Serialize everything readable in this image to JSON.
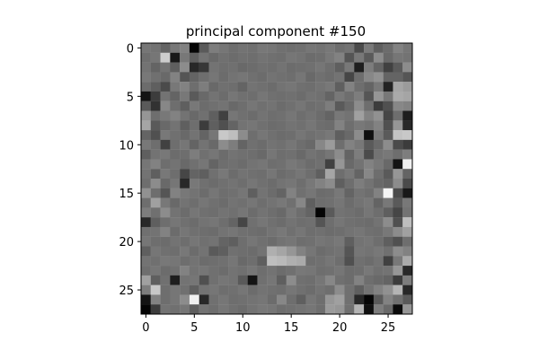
{
  "chart_data": {
    "type": "heatmap",
    "title": "principal component #150",
    "xlabel": "",
    "ylabel": "",
    "colormap": "gray",
    "grid": false,
    "rows": 28,
    "cols": 28,
    "x_ticks": [
      0,
      5,
      10,
      15,
      20,
      25
    ],
    "y_ticks": [
      0,
      5,
      10,
      15,
      20,
      25
    ],
    "xlim": [
      -0.5,
      27.5
    ],
    "ylim": [
      27.5,
      -0.5
    ],
    "vmin": 0,
    "vmax": 255,
    "values": [
      [
        118,
        115,
        100,
        120,
        130,
        5,
        90,
        125,
        118,
        110,
        115,
        112,
        120,
        118,
        112,
        110,
        112,
        118,
        115,
        120,
        110,
        115,
        75,
        122,
        95,
        108,
        130,
        118
      ],
      [
        110,
        118,
        205,
        25,
        120,
        95,
        115,
        105,
        112,
        108,
        112,
        110,
        115,
        112,
        110,
        118,
        115,
        108,
        110,
        120,
        130,
        85,
        120,
        90,
        140,
        105,
        118,
        115
      ],
      [
        115,
        100,
        115,
        95,
        140,
        40,
        55,
        115,
        110,
        112,
        105,
        108,
        112,
        110,
        115,
        108,
        110,
        112,
        118,
        110,
        95,
        120,
        30,
        125,
        100,
        65,
        90,
        140
      ],
      [
        120,
        112,
        105,
        130,
        85,
        100,
        110,
        118,
        108,
        115,
        118,
        112,
        108,
        115,
        112,
        110,
        118,
        105,
        112,
        108,
        115,
        70,
        110,
        135,
        145,
        100,
        100,
        85
      ],
      [
        108,
        95,
        75,
        120,
        130,
        110,
        125,
        105,
        112,
        110,
        100,
        115,
        112,
        108,
        115,
        118,
        112,
        110,
        115,
        120,
        95,
        130,
        110,
        100,
        120,
        35,
        165,
        155
      ],
      [
        20,
        60,
        115,
        100,
        120,
        90,
        105,
        115,
        108,
        118,
        112,
        110,
        118,
        112,
        110,
        112,
        108,
        115,
        112,
        100,
        120,
        110,
        125,
        85,
        150,
        120,
        170,
        165
      ],
      [
        90,
        50,
        135,
        110,
        95,
        120,
        108,
        112,
        115,
        105,
        110,
        118,
        112,
        115,
        108,
        112,
        118,
        110,
        112,
        125,
        90,
        105,
        140,
        110,
        60,
        80,
        135,
        130
      ],
      [
        150,
        110,
        120,
        130,
        115,
        105,
        112,
        95,
        65,
        118,
        112,
        108,
        115,
        110,
        112,
        118,
        110,
        115,
        108,
        100,
        120,
        115,
        160,
        130,
        145,
        70,
        110,
        30
      ],
      [
        165,
        90,
        105,
        115,
        95,
        110,
        60,
        95,
        80,
        100,
        115,
        118,
        112,
        108,
        110,
        115,
        112,
        118,
        110,
        108,
        130,
        110,
        120,
        115,
        130,
        80,
        150,
        40
      ],
      [
        100,
        80,
        120,
        112,
        105,
        115,
        100,
        118,
        200,
        190,
        140,
        110,
        118,
        112,
        108,
        110,
        118,
        112,
        115,
        120,
        95,
        105,
        140,
        15,
        120,
        90,
        195,
        200
      ],
      [
        120,
        110,
        65,
        110,
        118,
        100,
        115,
        105,
        140,
        125,
        100,
        112,
        108,
        115,
        112,
        118,
        110,
        105,
        135,
        155,
        110,
        130,
        120,
        90,
        105,
        140,
        75,
        60
      ],
      [
        95,
        115,
        120,
        108,
        110,
        125,
        112,
        118,
        108,
        115,
        112,
        110,
        105,
        118,
        110,
        112,
        105,
        115,
        110,
        118,
        140,
        100,
        125,
        75,
        115,
        120,
        110,
        125
      ],
      [
        118,
        130,
        110,
        115,
        105,
        112,
        118,
        100,
        110,
        112,
        108,
        115,
        118,
        110,
        112,
        120,
        115,
        108,
        112,
        65,
        150,
        105,
        115,
        130,
        120,
        105,
        20,
        240
      ],
      [
        115,
        95,
        120,
        110,
        70,
        100,
        95,
        112,
        120,
        108,
        115,
        112,
        110,
        118,
        108,
        112,
        118,
        110,
        95,
        165,
        110,
        120,
        100,
        135,
        110,
        90,
        150,
        100
      ],
      [
        110,
        140,
        105,
        118,
        40,
        120,
        112,
        108,
        112,
        115,
        110,
        118,
        112,
        108,
        115,
        118,
        110,
        120,
        130,
        140,
        95,
        110,
        125,
        115,
        105,
        100,
        140,
        75
      ],
      [
        145,
        110,
        85,
        130,
        120,
        115,
        108,
        118,
        110,
        112,
        118,
        95,
        115,
        108,
        100,
        130,
        112,
        118,
        108,
        110,
        120,
        100,
        115,
        110,
        130,
        245,
        75,
        25
      ],
      [
        110,
        160,
        120,
        105,
        115,
        110,
        118,
        112,
        108,
        115,
        112,
        118,
        110,
        115,
        120,
        112,
        135,
        95,
        110,
        112,
        118,
        108,
        115,
        120,
        100,
        120,
        90,
        120
      ],
      [
        125,
        112,
        140,
        115,
        108,
        118,
        112,
        110,
        115,
        112,
        118,
        108,
        115,
        110,
        105,
        120,
        110,
        100,
        5,
        90,
        115,
        112,
        108,
        118,
        110,
        95,
        70,
        115
      ],
      [
        40,
        95,
        110,
        118,
        112,
        108,
        115,
        118,
        110,
        100,
        70,
        112,
        118,
        112,
        108,
        115,
        110,
        112,
        85,
        110,
        118,
        112,
        110,
        108,
        115,
        140,
        80,
        190
      ],
      [
        112,
        115,
        130,
        108,
        118,
        112,
        110,
        108,
        115,
        118,
        112,
        110,
        108,
        115,
        120,
        112,
        118,
        110,
        112,
        108,
        110,
        115,
        118,
        112,
        110,
        120,
        140,
        160
      ],
      [
        118,
        110,
        108,
        115,
        110,
        118,
        112,
        115,
        100,
        95,
        110,
        118,
        112,
        108,
        115,
        118,
        110,
        112,
        118,
        115,
        120,
        95,
        115,
        118,
        110,
        95,
        80,
        110
      ],
      [
        95,
        118,
        112,
        110,
        120,
        108,
        115,
        90,
        95,
        112,
        110,
        108,
        115,
        175,
        165,
        150,
        130,
        118,
        108,
        112,
        115,
        85,
        118,
        115,
        120,
        112,
        140,
        130
      ],
      [
        115,
        112,
        120,
        118,
        110,
        115,
        108,
        110,
        112,
        118,
        105,
        110,
        95,
        190,
        185,
        175,
        170,
        110,
        112,
        118,
        110,
        80,
        112,
        108,
        115,
        65,
        120,
        170
      ],
      [
        110,
        118,
        108,
        112,
        130,
        115,
        118,
        112,
        108,
        115,
        112,
        118,
        110,
        115,
        108,
        112,
        120,
        118,
        110,
        112,
        118,
        108,
        110,
        120,
        112,
        115,
        150,
        40
      ],
      [
        160,
        95,
        112,
        30,
        115,
        118,
        80,
        112,
        118,
        115,
        90,
        20,
        112,
        118,
        95,
        140,
        112,
        110,
        118,
        135,
        112,
        108,
        130,
        110,
        105,
        100,
        60,
        125
      ],
      [
        125,
        200,
        110,
        118,
        112,
        95,
        115,
        118,
        110,
        112,
        118,
        108,
        115,
        112,
        110,
        118,
        112,
        108,
        115,
        110,
        140,
        112,
        95,
        115,
        130,
        145,
        180,
        40
      ],
      [
        20,
        130,
        110,
        118,
        140,
        240,
        40,
        112,
        118,
        110,
        112,
        115,
        118,
        108,
        135,
        110,
        95,
        118,
        110,
        150,
        160,
        112,
        40,
        5,
        90,
        130,
        112,
        90
      ],
      [
        5,
        60,
        115,
        112,
        118,
        95,
        115,
        110,
        118,
        112,
        108,
        115,
        120,
        118,
        110,
        112,
        115,
        118,
        110,
        155,
        150,
        112,
        180,
        15,
        125,
        105,
        10,
        150
      ]
    ]
  }
}
